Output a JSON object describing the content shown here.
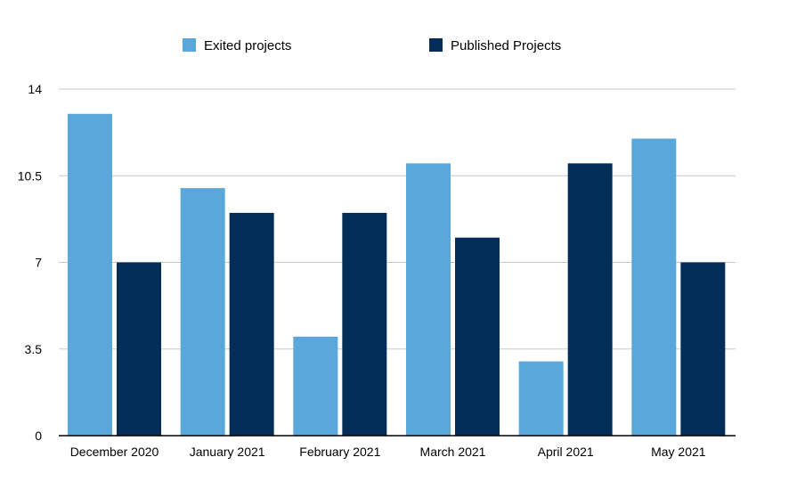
{
  "chart_data": {
    "type": "bar",
    "categories": [
      "December 2020",
      "January 2021",
      "February 2021",
      "March 2021",
      "April 2021",
      "May 2021"
    ],
    "series": [
      {
        "name": "Exited projects",
        "color": "#5aa8db",
        "values": [
          13,
          10,
          4,
          11,
          3,
          12
        ]
      },
      {
        "name": "Published Projects",
        "color": "#042e5a",
        "values": [
          7,
          9,
          9,
          8,
          11,
          7
        ]
      }
    ],
    "y_ticks": [
      0,
      3.5,
      7,
      10.5,
      14
    ],
    "ylim": [
      0,
      14
    ],
    "grid": true,
    "legend_position": "top"
  }
}
